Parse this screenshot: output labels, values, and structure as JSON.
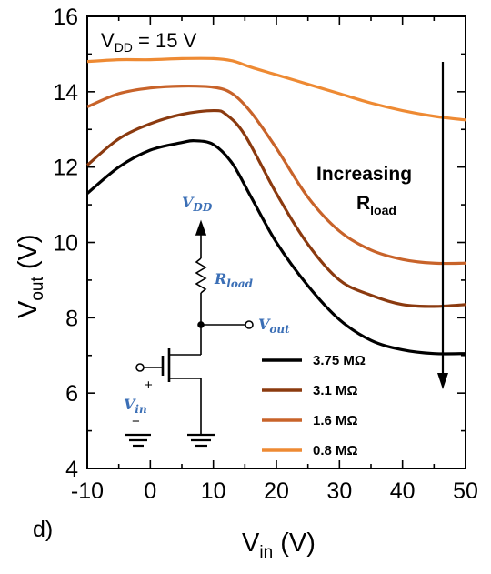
{
  "chart_data": {
    "type": "line",
    "xlabel": "V",
    "xlabel_sub": "in",
    "xlabel_unit": " (V)",
    "ylabel": "V",
    "ylabel_sub": "out",
    "ylabel_unit": " (V)",
    "xlim": [
      -10,
      50
    ],
    "ylim": [
      4,
      16
    ],
    "xticks": [
      -10,
      0,
      10,
      20,
      30,
      40,
      50
    ],
    "yticks": [
      4,
      6,
      8,
      10,
      12,
      14,
      16
    ],
    "grid": false,
    "legend_position": "bottom-right",
    "series": [
      {
        "name": "3.75 MΩ",
        "color": "#000000",
        "x": [
          -10,
          -5,
          0,
          5,
          7,
          10,
          13,
          16,
          20,
          25,
          30,
          35,
          40,
          45,
          50
        ],
        "y": [
          11.3,
          12.0,
          12.45,
          12.65,
          12.7,
          12.6,
          12.1,
          11.2,
          10.0,
          8.85,
          7.95,
          7.4,
          7.15,
          7.05,
          7.05
        ]
      },
      {
        "name": "3.1 MΩ",
        "color": "#8b3a0f",
        "x": [
          -10,
          -5,
          0,
          5,
          10,
          12,
          15,
          20,
          25,
          30,
          35,
          40,
          45,
          50
        ],
        "y": [
          12.05,
          12.75,
          13.15,
          13.4,
          13.5,
          13.4,
          12.85,
          11.3,
          9.95,
          9.0,
          8.6,
          8.35,
          8.3,
          8.35
        ]
      },
      {
        "name": "1.6 MΩ",
        "color": "#c8632a",
        "x": [
          -10,
          -5,
          0,
          5,
          10,
          13,
          16,
          20,
          25,
          30,
          35,
          40,
          45,
          50
        ],
        "y": [
          13.6,
          13.95,
          14.1,
          14.15,
          14.12,
          13.95,
          13.45,
          12.5,
          11.2,
          10.3,
          9.8,
          9.55,
          9.45,
          9.45
        ]
      },
      {
        "name": "0.8 MΩ",
        "color": "#ee8a33",
        "x": [
          -10,
          -5,
          0,
          5,
          10,
          13,
          16,
          20,
          25,
          30,
          35,
          40,
          45,
          50
        ],
        "y": [
          14.8,
          14.85,
          14.85,
          14.88,
          14.88,
          14.82,
          14.65,
          14.45,
          14.2,
          13.95,
          13.7,
          13.5,
          13.35,
          13.25
        ]
      }
    ],
    "annotations": {
      "vdd_label": "V",
      "vdd_sub": "DD",
      "vdd_value": " = 15 V",
      "increasing_line1": "Increasing",
      "increasing_line2": "R",
      "increasing_sub": "load",
      "panel_label": "d)"
    },
    "circuit": {
      "vdd": "V",
      "vdd_sub": "DD",
      "rload": "R",
      "rload_sub": "load",
      "vout": "V",
      "vout_sub": "out",
      "vin": "V",
      "vin_sub": "in",
      "plus": "+",
      "minus": "−"
    }
  }
}
